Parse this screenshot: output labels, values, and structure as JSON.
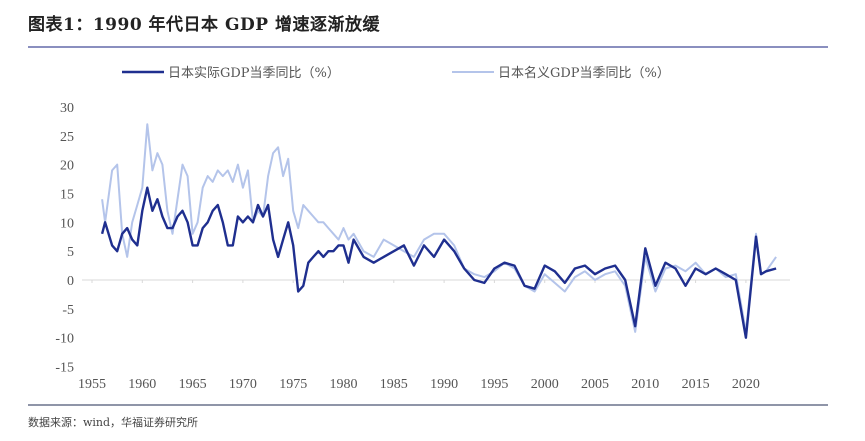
{
  "title": "图表1：1990 年代日本 GDP 增速逐渐放缓",
  "source": "数据来源：wind，华福证券研究所",
  "chart_data": {
    "type": "line",
    "title": "图表1：1990 年代日本 GDP 增速逐渐放缓",
    "xlabel": "",
    "ylabel": "",
    "xlim": [
      1955,
      2024
    ],
    "ylim": [
      -15,
      30
    ],
    "x_ticks": [
      "1955",
      "1960",
      "1965",
      "1970",
      "1975",
      "1980",
      "1985",
      "1990",
      "1995",
      "2000",
      "2005",
      "2010",
      "2015",
      "2020"
    ],
    "y_ticks": [
      "30",
      "25",
      "20",
      "15",
      "10",
      "5",
      "0",
      "-5",
      "-10",
      "-15"
    ],
    "grid": false,
    "legend_position": "top",
    "colors": {
      "real": "#1f2f8f",
      "nominal": "#b4c4ea",
      "axis": "#d8d8d8"
    },
    "x": [
      1956,
      1956.3,
      1957,
      1957.5,
      1958,
      1958.5,
      1959,
      1959.5,
      1960,
      1960.5,
      1961,
      1961.5,
      1962,
      1962.5,
      1963,
      1963.5,
      1964,
      1964.5,
      1965,
      1965.5,
      1966,
      1966.5,
      1967,
      1967.5,
      1968,
      1968.5,
      1969,
      1969.5,
      1970,
      1970.5,
      1971,
      1971.5,
      1972,
      1972.5,
      1973,
      1973.5,
      1974,
      1974.5,
      1975,
      1975.5,
      1976,
      1976.5,
      1977,
      1977.5,
      1978,
      1978.5,
      1979,
      1979.5,
      1980,
      1980.5,
      1981,
      1982,
      1983,
      1984,
      1985,
      1986,
      1987,
      1988,
      1989,
      1990,
      1991,
      1992,
      1993,
      1994,
      1995,
      1996,
      1997,
      1998,
      1999,
      2000,
      2001,
      2002,
      2003,
      2004,
      2005,
      2006,
      2007,
      2008,
      2009,
      2010,
      2011,
      2012,
      2013,
      2014,
      2015,
      2016,
      2017,
      2018,
      2019,
      2020,
      2021,
      2021.5,
      2022,
      2023
    ],
    "series": [
      {
        "name": "日本实际GDP当季同比（%）",
        "values": [
          8,
          10,
          6,
          5,
          8,
          9,
          7,
          6,
          12,
          16,
          12,
          14,
          11,
          9,
          9,
          11,
          12,
          10,
          6,
          6,
          9,
          10,
          12,
          13,
          10,
          6,
          6,
          11,
          10,
          11,
          10,
          13,
          11,
          13,
          7,
          4,
          7,
          10,
          6,
          -2,
          -1,
          3,
          4,
          5,
          4,
          5,
          5,
          6,
          6,
          3,
          7,
          4,
          3,
          4,
          5,
          6,
          2.5,
          6,
          4,
          7,
          5,
          2,
          0,
          -0.5,
          2,
          3,
          2.5,
          -1,
          -1.5,
          2.5,
          1.5,
          -0.5,
          2,
          2.5,
          1,
          2,
          2.5,
          0,
          -8,
          5.5,
          -1,
          3,
          2,
          -1,
          2,
          1,
          2,
          1,
          0,
          -10,
          7.5,
          1,
          1.5,
          2
        ]
      },
      {
        "name": "日本名义GDP当季同比（%）",
        "values": [
          14,
          10,
          19,
          20,
          8,
          4,
          10,
          13,
          16,
          27,
          19,
          22,
          20,
          12,
          8,
          14,
          20,
          18,
          8,
          10,
          16,
          18,
          17,
          19,
          18,
          19,
          17,
          20,
          16,
          19,
          10,
          12,
          11,
          18,
          22,
          23,
          18,
          21,
          12,
          9,
          13,
          12,
          11,
          10,
          10,
          9,
          8,
          7,
          9,
          7,
          8,
          5,
          4,
          7,
          6,
          5,
          4,
          7,
          8,
          8,
          6,
          2,
          1,
          0.5,
          1.5,
          3,
          2,
          -1,
          -2,
          1,
          -0.5,
          -2,
          0.5,
          1.5,
          0,
          1,
          1.5,
          -1,
          -9,
          4,
          -2,
          2,
          2.5,
          1.5,
          3,
          1,
          2,
          0.5,
          1,
          -9,
          8,
          1,
          1.5,
          4
        ]
      }
    ]
  }
}
